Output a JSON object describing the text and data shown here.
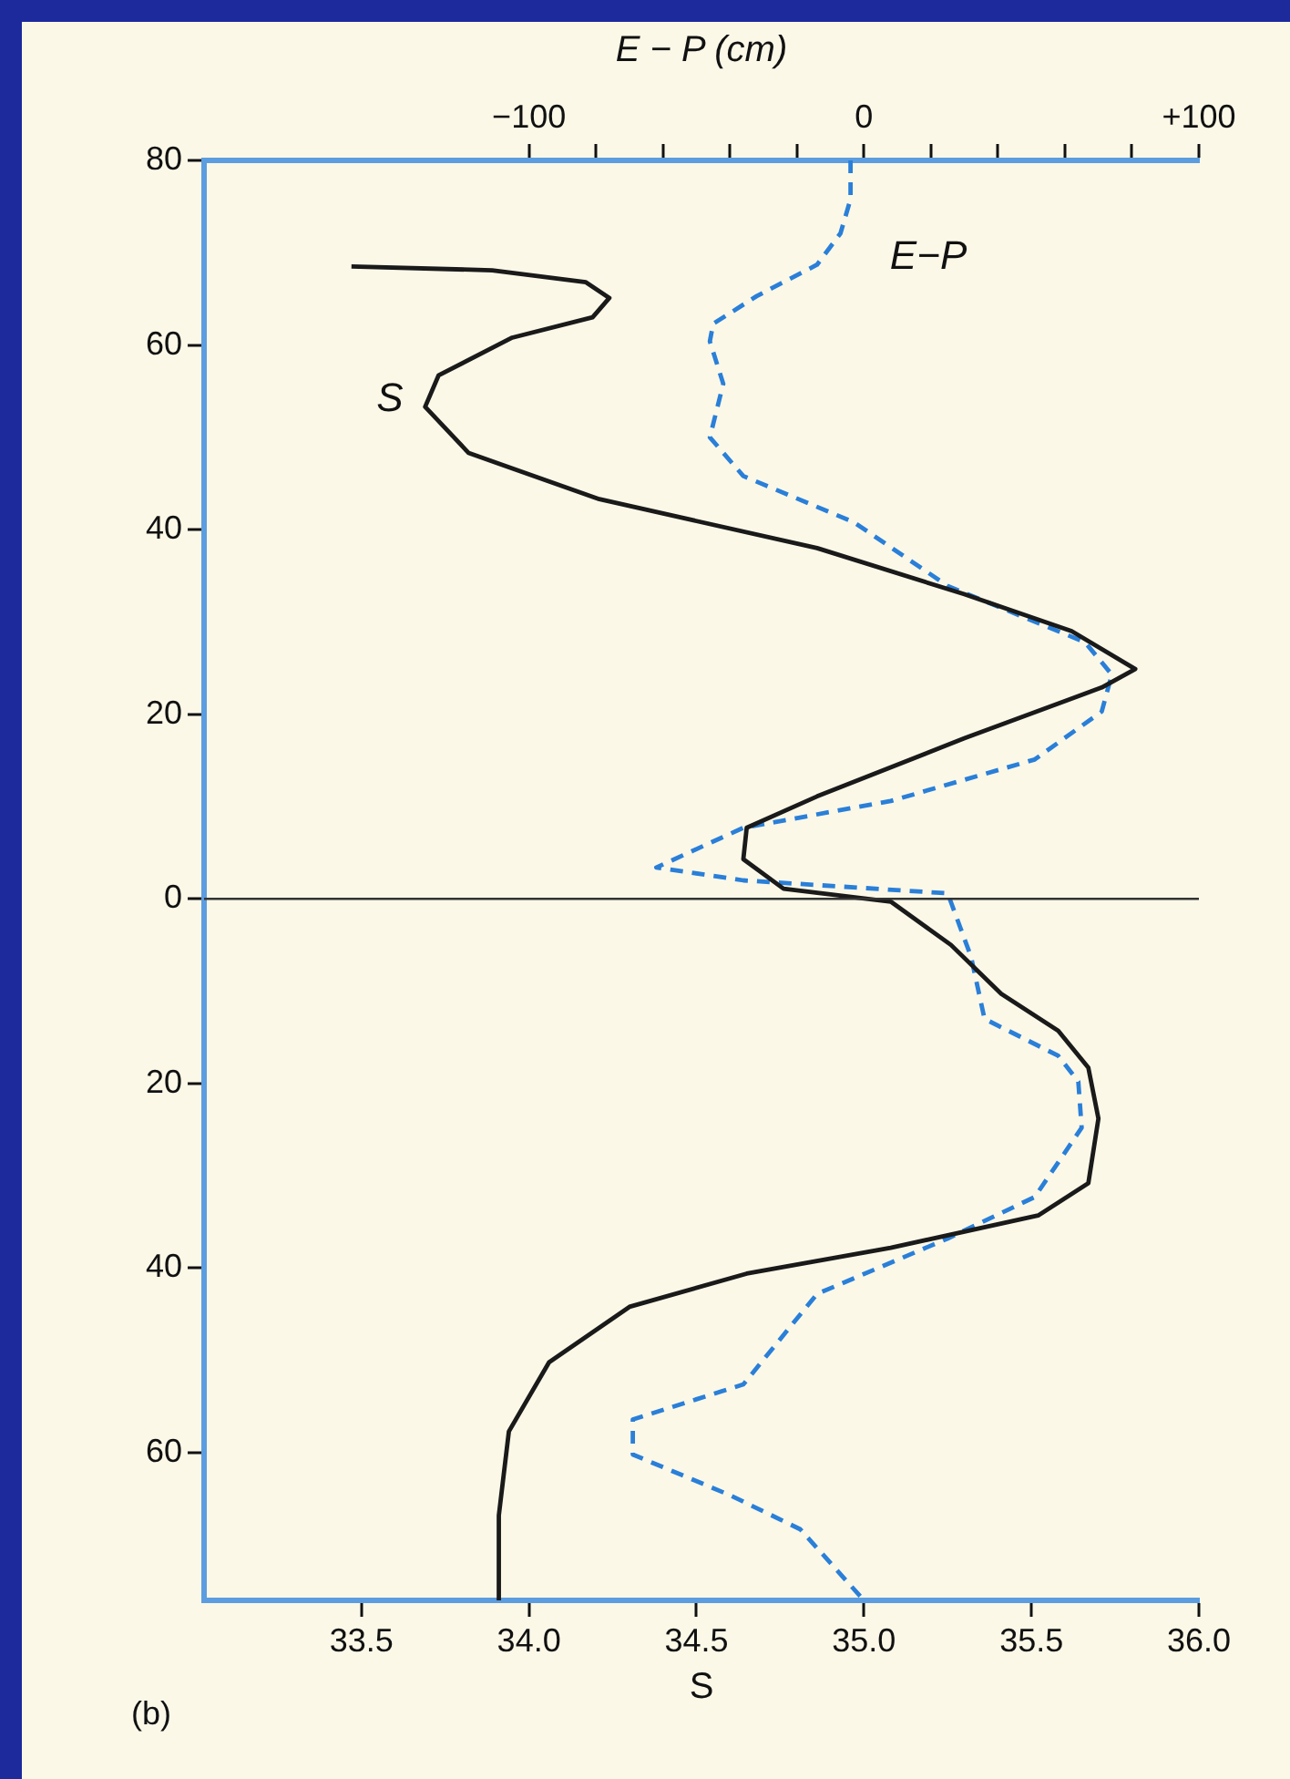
{
  "chart_data": {
    "type": "line",
    "xlabel": "S",
    "x2label": "E − P (cm)",
    "xlim": [
      33.03,
      36.0
    ],
    "xticks": [
      33.5,
      {
        "value": 34,
        "label": "34.0"
      },
      34.5,
      {
        "value": 35,
        "label": "35.0"
      },
      35.5,
      {
        "value": 36,
        "label": "36.0"
      }
    ],
    "x2lim": [
      -197,
      100
    ],
    "x2ticks": [
      {
        "value": -100,
        "label": "−100"
      },
      {
        "value": -80,
        "label": null
      },
      {
        "value": -60,
        "label": null
      },
      {
        "value": -40,
        "label": null
      },
      {
        "value": -20,
        "label": null
      },
      0,
      {
        "value": 20,
        "label": null
      },
      {
        "value": 40,
        "label": null
      },
      {
        "value": 60,
        "label": null
      },
      {
        "value": 80,
        "label": null
      },
      {
        "value": 100,
        "label": "+100"
      }
    ],
    "ylim": [
      -76,
      80
    ],
    "yticks": [
      80,
      60,
      40,
      20,
      0,
      {
        "value": -20,
        "label": "20"
      },
      {
        "value": -40,
        "label": "40"
      },
      {
        "value": -60,
        "label": "60"
      }
    ],
    "grid": false,
    "legend": false,
    "marker": "none",
    "ref_lines": [
      {
        "axis": "y",
        "value": 0,
        "color": "#333333"
      }
    ],
    "annotations": [
      "(b)"
    ],
    "series": [
      {
        "name": "S",
        "type": "line",
        "color": "#1a1a1a",
        "line_style": "solid",
        "x": [
          33.47,
          33.89,
          34.17,
          34.24,
          34.19,
          33.95,
          33.73,
          33.69,
          33.82,
          34.21,
          34.86,
          35.3,
          35.62,
          35.81,
          35.71,
          35.3,
          34.86,
          34.65,
          34.64,
          34.76,
          35.08,
          35.26,
          35.41,
          35.58,
          35.67,
          35.7,
          35.67,
          35.52,
          35.08,
          34.65,
          34.3,
          34.06,
          33.94,
          33.91,
          33.91
        ],
        "values": [
          68.5,
          68.1,
          66.8,
          65.1,
          63.0,
          60.8,
          56.7,
          53.3,
          48.3,
          43.3,
          38.0,
          33.0,
          29.0,
          24.9,
          22.9,
          17.4,
          11.1,
          7.7,
          4.3,
          1.1,
          -0.3,
          -5,
          -10.3,
          -14.3,
          -18.3,
          -23.8,
          -30.8,
          -34.3,
          -37.8,
          -40.6,
          -44.2,
          -50.2,
          -57.7,
          -66.8,
          -76
        ]
      },
      {
        "name": "E−P",
        "type": "line",
        "axis": "x2",
        "color": "#2a7fd8",
        "line_style": "dashed",
        "x": [
          -4,
          -4,
          -7,
          -14,
          -32,
          -45,
          -46,
          -42,
          -46,
          -36,
          -3,
          25,
          66,
          74,
          71,
          51,
          8,
          -36,
          -62,
          -36,
          25,
          32,
          36,
          58,
          64,
          65,
          51,
          25,
          -14,
          -36,
          -69,
          -69,
          -40,
          -19,
          0
        ],
        "values": [
          80,
          75.8,
          72.1,
          68.7,
          65.3,
          62.3,
          60.4,
          55.8,
          50.0,
          45.8,
          40.8,
          33.9,
          27.8,
          24.3,
          20.3,
          15.1,
          10.6,
          7.7,
          3.4,
          2.0,
          0.6,
          -6.3,
          -13,
          -17,
          -19.8,
          -24.8,
          -32.3,
          -36.8,
          -42.8,
          -52.6,
          -56.4,
          -60.2,
          -64.6,
          -68.3,
          -76
        ]
      }
    ]
  }
}
